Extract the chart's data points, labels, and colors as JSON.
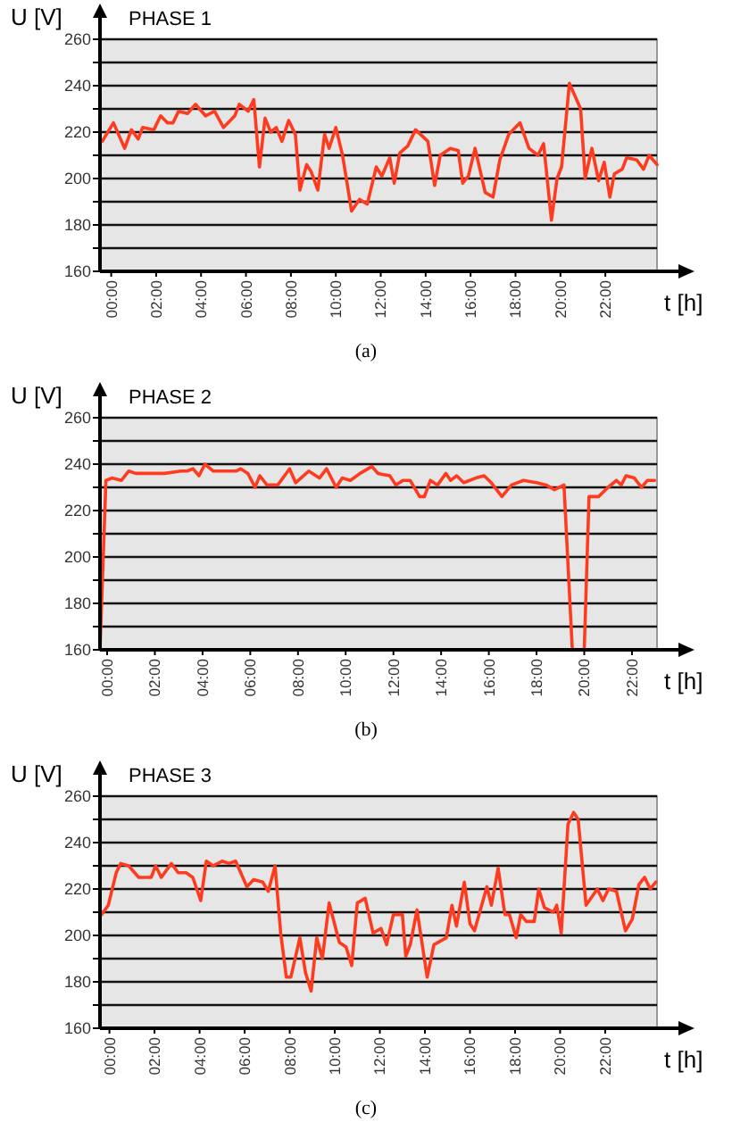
{
  "chart_data": [
    {
      "type": "line",
      "title": "PHASE 1",
      "ylabel": "U [V]",
      "xlabel": "t [h]",
      "annotations": [
        "(a)"
      ],
      "grid": "y",
      "marker": "none",
      "line_style": "solid",
      "xlim": [
        -0.5,
        24.3
      ],
      "ylim": [
        160,
        260
      ],
      "xticks": [
        {
          "value": 0,
          "label": "00:00"
        },
        {
          "value": 2,
          "label": "02:00"
        },
        {
          "value": 4,
          "label": "04:00"
        },
        {
          "value": 6,
          "label": "06:00"
        },
        {
          "value": 8,
          "label": "08:00"
        },
        {
          "value": 10,
          "label": "10:00"
        },
        {
          "value": 12,
          "label": "12:00"
        },
        {
          "value": 14,
          "label": "14:00"
        },
        {
          "value": 16,
          "label": "16:00"
        },
        {
          "value": 18,
          "label": "18:00"
        },
        {
          "value": 20,
          "label": "20:00"
        },
        {
          "value": 22,
          "label": "22:00"
        }
      ],
      "yticks": [
        160,
        {
          "value": 170,
          "label": null
        },
        180,
        {
          "value": 190,
          "label": null
        },
        200,
        {
          "value": 210,
          "label": null
        },
        220,
        {
          "value": 230,
          "label": null
        },
        240,
        {
          "value": 250,
          "label": null
        },
        260
      ],
      "series": [
        {
          "color": "#ff3b1f",
          "x": [
            -0.4,
            -0.15,
            0.1,
            0.6,
            0.9,
            1.2,
            1.4,
            1.9,
            2.2,
            2.5,
            2.75,
            3.0,
            3.4,
            3.75,
            4.2,
            4.6,
            5.0,
            5.5,
            5.7,
            6.1,
            6.35,
            6.6,
            6.85,
            7.1,
            7.35,
            7.6,
            7.9,
            8.2,
            8.4,
            8.7,
            8.9,
            9.2,
            9.5,
            9.7,
            10.0,
            10.3,
            10.7,
            11.05,
            11.4,
            11.8,
            12.05,
            12.4,
            12.6,
            12.85,
            13.2,
            13.55,
            14.1,
            14.4,
            14.65,
            15.1,
            15.45,
            15.65,
            15.9,
            16.2,
            16.65,
            17.0,
            17.3,
            17.7,
            18.2,
            18.6,
            19.0,
            19.25,
            19.6,
            19.85,
            20.05,
            20.4,
            20.9,
            21.1,
            21.4,
            21.7,
            21.95,
            22.2,
            22.4,
            22.75,
            22.95,
            23.4,
            23.7,
            23.95,
            24.3
          ],
          "values": [
            216,
            220,
            224,
            213,
            221,
            217,
            222,
            221,
            227,
            224,
            224,
            229,
            228,
            232,
            227,
            229,
            222,
            227,
            232,
            229,
            234,
            205,
            226,
            220,
            222,
            216,
            225,
            219,
            195,
            206,
            203,
            195,
            219,
            213,
            222,
            210,
            186,
            191,
            189,
            205,
            201,
            209,
            198,
            211,
            214,
            221,
            216,
            197,
            210,
            213,
            212,
            198,
            201,
            213,
            194,
            192,
            208,
            219,
            224,
            213,
            210,
            215,
            182,
            200,
            205,
            241,
            230,
            200,
            213,
            199,
            207,
            192,
            202,
            204,
            209,
            208,
            204,
            210,
            206
          ]
        }
      ]
    },
    {
      "type": "line",
      "title": "PHASE 2",
      "ylabel": "U [V]",
      "xlabel": "t [h]",
      "annotations": [
        "(b)"
      ],
      "grid": "y",
      "marker": "none",
      "line_style": "solid",
      "xlim": [
        -0.3,
        23.05
      ],
      "ylim": [
        160,
        260
      ],
      "xticks": [
        {
          "value": 0,
          "label": "00:00"
        },
        {
          "value": 2,
          "label": "02:00"
        },
        {
          "value": 4,
          "label": "04:00"
        },
        {
          "value": 6,
          "label": "06:00"
        },
        {
          "value": 8,
          "label": "08:00"
        },
        {
          "value": 10,
          "label": "10:00"
        },
        {
          "value": 12,
          "label": "12:00"
        },
        {
          "value": 14,
          "label": "14:00"
        },
        {
          "value": 16,
          "label": "16:00"
        },
        {
          "value": 18,
          "label": "18:00"
        },
        {
          "value": 20,
          "label": "20:00"
        },
        {
          "value": 22,
          "label": "22:00"
        }
      ],
      "yticks": [
        160,
        {
          "value": 170,
          "label": null
        },
        180,
        {
          "value": 190,
          "label": null
        },
        200,
        {
          "value": 210,
          "label": null
        },
        220,
        {
          "value": 230,
          "label": null
        },
        240,
        {
          "value": 250,
          "label": null
        },
        260
      ],
      "series": [
        {
          "color": "#ff3b1f",
          "x": [
            -0.3,
            -0.05,
            0.2,
            0.6,
            0.9,
            1.2,
            2.4,
            3.1,
            3.35,
            3.6,
            3.85,
            4.1,
            4.45,
            5.4,
            5.6,
            5.9,
            6.2,
            6.4,
            6.7,
            7.15,
            7.65,
            7.9,
            8.45,
            8.9,
            9.2,
            9.6,
            9.85,
            10.2,
            10.6,
            11.1,
            11.35,
            11.85,
            12.1,
            12.4,
            12.7,
            13.1,
            13.3,
            13.55,
            13.85,
            14.2,
            14.4,
            14.65,
            14.95,
            15.45,
            15.8,
            16.1,
            16.55,
            16.95,
            17.45,
            18.0,
            18.4,
            18.75,
            19.15,
            19.5,
            20.0,
            20.2,
            20.6,
            21.0,
            21.35,
            21.55,
            21.75,
            22.1,
            22.4,
            22.65,
            22.95
          ],
          "values": [
            160,
            233,
            234,
            233,
            237,
            236,
            236,
            237,
            237,
            238,
            235,
            240,
            237,
            237,
            238,
            236,
            230,
            235,
            231,
            231,
            238,
            232,
            237,
            234,
            238,
            230,
            234,
            233,
            236,
            239,
            236,
            235,
            231,
            233,
            233,
            226,
            226,
            233,
            231,
            236,
            233,
            235,
            232,
            234,
            235,
            232,
            226,
            231,
            233,
            232,
            231,
            229,
            231,
            160,
            160,
            226,
            226,
            230,
            233,
            231,
            235,
            234,
            230,
            233,
            233
          ]
        }
      ]
    },
    {
      "type": "line",
      "title": "PHASE 3",
      "ylabel": "U [V]",
      "xlabel": "t [h]",
      "annotations": [
        "(c)"
      ],
      "grid": "y",
      "marker": "none",
      "line_style": "solid",
      "xlim": [
        -0.42,
        24.3
      ],
      "ylim": [
        160,
        260
      ],
      "xticks": [
        {
          "value": 0,
          "label": "00:00"
        },
        {
          "value": 2,
          "label": "02:00"
        },
        {
          "value": 4,
          "label": "04:00"
        },
        {
          "value": 6,
          "label": "06:00"
        },
        {
          "value": 8,
          "label": "08:00"
        },
        {
          "value": 10,
          "label": "10:00"
        },
        {
          "value": 12,
          "label": "12:00"
        },
        {
          "value": 14,
          "label": "14:00"
        },
        {
          "value": 16,
          "label": "16:00"
        },
        {
          "value": 18,
          "label": "18:00"
        },
        {
          "value": 20,
          "label": "20:00"
        },
        {
          "value": 22,
          "label": "22:00"
        }
      ],
      "yticks": [
        160,
        {
          "value": 170,
          "label": null
        },
        180,
        {
          "value": 190,
          "label": null
        },
        200,
        {
          "value": 210,
          "label": null
        },
        220,
        {
          "value": 230,
          "label": null
        },
        240,
        {
          "value": 250,
          "label": null
        },
        260
      ],
      "series": [
        {
          "color": "#ff3b1f",
          "x": [
            -0.35,
            -0.05,
            0.3,
            0.5,
            0.85,
            1.3,
            1.85,
            2.05,
            2.3,
            2.75,
            3.05,
            3.4,
            3.7,
            4.05,
            4.3,
            4.6,
            5.0,
            5.3,
            5.6,
            6.1,
            6.4,
            6.8,
            7.05,
            7.35,
            7.6,
            7.85,
            8.05,
            8.45,
            8.7,
            8.95,
            9.2,
            9.45,
            9.75,
            10.2,
            10.5,
            10.75,
            11.0,
            11.35,
            11.7,
            12.05,
            12.3,
            12.6,
            13.0,
            13.15,
            13.35,
            13.65,
            14.1,
            14.4,
            14.95,
            15.2,
            15.4,
            15.75,
            16.0,
            16.2,
            16.75,
            16.95,
            17.25,
            17.55,
            17.75,
            18.05,
            18.25,
            18.5,
            18.85,
            19.05,
            19.3,
            19.7,
            19.85,
            20.05,
            20.35,
            20.6,
            20.8,
            21.15,
            21.65,
            21.9,
            22.15,
            22.5,
            22.9,
            23.2,
            23.5,
            23.75,
            24.0,
            24.25
          ],
          "values": [
            209,
            213,
            227,
            231,
            230,
            225,
            225,
            230,
            225,
            231,
            227,
            227,
            225,
            215,
            232,
            230,
            232,
            231,
            232,
            221,
            224,
            223,
            219,
            230,
            201,
            182,
            182,
            199,
            184,
            176,
            199,
            190,
            214,
            197,
            195,
            187,
            214,
            216,
            201,
            203,
            196,
            209,
            209,
            191,
            196,
            211,
            182,
            196,
            199,
            213,
            204,
            223,
            205,
            202,
            221,
            213,
            229,
            209,
            209,
            199,
            209,
            206,
            206,
            220,
            212,
            210,
            213,
            201,
            248,
            253,
            250,
            213,
            220,
            215,
            220,
            219,
            202,
            207,
            222,
            225,
            220,
            223
          ]
        }
      ]
    }
  ]
}
